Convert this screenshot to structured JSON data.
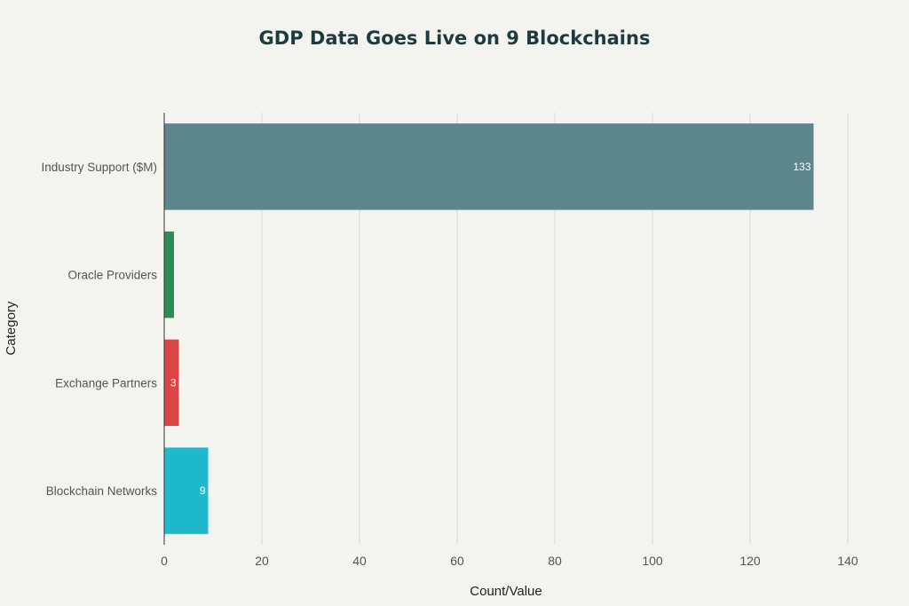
{
  "chart_data": {
    "type": "bar",
    "orientation": "horizontal",
    "title": "GDP Data Goes Live on 9 Blockchains",
    "xlabel": "Count/Value",
    "ylabel": "Category",
    "categories": [
      "Industry Support ($M)",
      "Oracle Providers",
      "Exchange Partners",
      "Blockchain Networks"
    ],
    "values": [
      133,
      2,
      3,
      9
    ],
    "data_labels": [
      "133",
      "",
      "3",
      "9"
    ],
    "colors": [
      "#5d868d",
      "#2e8b57",
      "#db4545",
      "#1fb8cd"
    ],
    "xlim": [
      0,
      140
    ],
    "x_ticks": [
      0,
      20,
      40,
      60,
      80,
      100,
      120,
      140
    ],
    "grid": "vertical",
    "legend": "none"
  }
}
